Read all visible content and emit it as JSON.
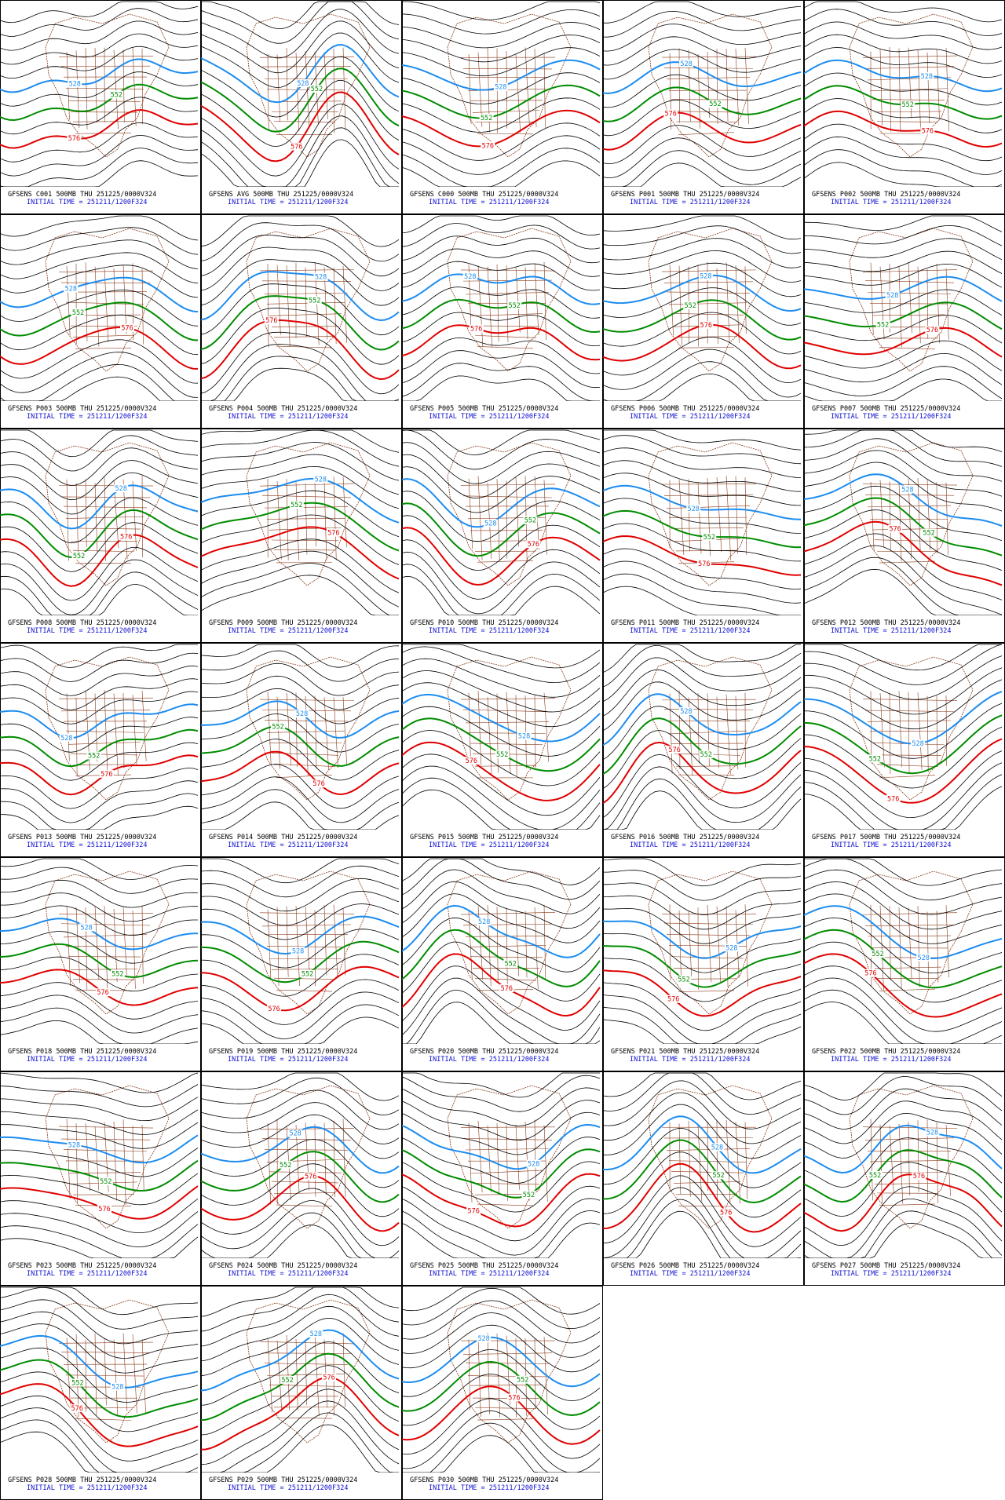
{
  "contour_colors": [
    "#1c8cf0",
    "#008c00",
    "#e00000"
  ],
  "panels": [
    {
      "title": "GFSENS C001 500MB THU 251225/0000V324",
      "init": "INITIAL TIME = 251211/1200F324",
      "contour_labels": [
        "528",
        "552",
        "576"
      ]
    },
    {
      "title": "GFSENS AVG 500MB THU 251225/0000V324",
      "init": "INITIAL TIME = 251211/1200F324",
      "contour_labels": [
        "528",
        "552",
        "576"
      ]
    },
    {
      "title": "GFSENS C000 500MB THU 251225/0000V324",
      "init": "INITIAL TIME = 251211/1200F324",
      "contour_labels": [
        "528",
        "552",
        "576"
      ]
    },
    {
      "title": "GFSENS P001 500MB THU 251225/0000V324",
      "init": "INITIAL TIME = 251211/1200F324",
      "contour_labels": [
        "528",
        "552",
        "576"
      ]
    },
    {
      "title": "GFSENS P002 500MB THU 251225/0000V324",
      "init": "INITIAL TIME = 251211/1200F324",
      "contour_labels": [
        "528",
        "552",
        "576"
      ]
    },
    {
      "title": "GFSENS P003 500MB THU 251225/0000V324",
      "init": "INITIAL TIME = 251211/1200F324",
      "contour_labels": [
        "528",
        "552",
        "576"
      ]
    },
    {
      "title": "GFSENS P004 500MB THU 251225/0000V324",
      "init": "INITIAL TIME = 251211/1200F324",
      "contour_labels": [
        "528",
        "552",
        "576"
      ]
    },
    {
      "title": "GFSENS P005 500MB THU 251225/0000V324",
      "init": "INITIAL TIME = 251211/1200F324",
      "contour_labels": [
        "528",
        "552",
        "576"
      ]
    },
    {
      "title": "GFSENS P006 500MB THU 251225/0000V324",
      "init": "INITIAL TIME = 251211/1200F324",
      "contour_labels": [
        "528",
        "552",
        "576"
      ]
    },
    {
      "title": "GFSENS P007 500MB THU 251225/0000V324",
      "init": "INITIAL TIME = 251211/1200F324",
      "contour_labels": [
        "528",
        "552",
        "576"
      ]
    },
    {
      "title": "GFSENS P008 500MB THU 251225/0000V324",
      "init": "INITIAL TIME = 251211/1200F324",
      "contour_labels": [
        "528",
        "552",
        "576"
      ]
    },
    {
      "title": "GFSENS P009 500MB THU 251225/0000V324",
      "init": "INITIAL TIME = 251211/1200F324",
      "contour_labels": [
        "528",
        "552",
        "576"
      ]
    },
    {
      "title": "GFSENS P010 500MB THU 251225/0000V324",
      "init": "INITIAL TIME = 251211/1200F324",
      "contour_labels": [
        "528",
        "552",
        "576"
      ]
    },
    {
      "title": "GFSENS P011 500MB THU 251225/0000V324",
      "init": "INITIAL TIME = 251211/1200F324",
      "contour_labels": [
        "528",
        "552",
        "576"
      ]
    },
    {
      "title": "GFSENS P012 500MB THU 251225/0000V324",
      "init": "INITIAL TIME = 251211/1200F324",
      "contour_labels": [
        "528",
        "552",
        "576"
      ]
    },
    {
      "title": "GFSENS P013 500MB THU 251225/0000V324",
      "init": "INITIAL TIME = 251211/1200F324",
      "contour_labels": [
        "528",
        "552",
        "576"
      ]
    },
    {
      "title": "GFSENS P014 500MB THU 251225/0000V324",
      "init": "INITIAL TIME = 251211/1200F324",
      "contour_labels": [
        "528",
        "552",
        "576"
      ]
    },
    {
      "title": "GFSENS P015 500MB THU 251225/0000V324",
      "init": "INITIAL TIME = 251211/1200F324",
      "contour_labels": [
        "528",
        "552",
        "576"
      ]
    },
    {
      "title": "GFSENS P016 500MB THU 251225/0000V324",
      "init": "INITIAL TIME = 251211/1200F324",
      "contour_labels": [
        "528",
        "552",
        "576"
      ]
    },
    {
      "title": "GFSENS P017 500MB THU 251225/0000V324",
      "init": "INITIAL TIME = 251211/1200F324",
      "contour_labels": [
        "528",
        "552",
        "576"
      ]
    },
    {
      "title": "GFSENS P018 500MB THU 251225/0000V324",
      "init": "INITIAL TIME = 251211/1200F324",
      "contour_labels": [
        "528",
        "552",
        "576"
      ]
    },
    {
      "title": "GFSENS P019 500MB THU 251225/0000V324",
      "init": "INITIAL TIME = 251211/1200F324",
      "contour_labels": [
        "528",
        "552",
        "576"
      ]
    },
    {
      "title": "GFSENS P020 500MB THU 251225/0000V324",
      "init": "INITIAL TIME = 251211/1200F324",
      "contour_labels": [
        "528",
        "552",
        "576"
      ]
    },
    {
      "title": "GFSENS P021 500MB THU 251225/0000V324",
      "init": "INITIAL TIME = 251211/1200F324",
      "contour_labels": [
        "528",
        "552",
        "576"
      ]
    },
    {
      "title": "GFSENS P022 500MB THU 251225/0000V324",
      "init": "INITIAL TIME = 251211/1200F324",
      "contour_labels": [
        "528",
        "552",
        "576"
      ]
    },
    {
      "title": "GFSENS P023 500MB THU 251225/0000V324",
      "init": "INITIAL TIME = 251211/1200F324",
      "contour_labels": [
        "528",
        "552",
        "576"
      ]
    },
    {
      "title": "GFSENS P024 500MB THU 251225/0000V324",
      "init": "INITIAL TIME = 251211/1200F324",
      "contour_labels": [
        "528",
        "552",
        "576"
      ]
    },
    {
      "title": "GFSENS P025 500MB THU 251225/0000V324",
      "init": "INITIAL TIME = 251211/1200F324",
      "contour_labels": [
        "528",
        "552",
        "576"
      ]
    },
    {
      "title": "GFSENS P026 500MB THU 251225/0000V324",
      "init": "INITIAL TIME = 251211/1200F324",
      "contour_labels": [
        "528",
        "552",
        "576"
      ]
    },
    {
      "title": "GFSENS P027 500MB THU 251225/0000V324",
      "init": "INITIAL TIME = 251211/1200F324",
      "contour_labels": [
        "528",
        "552",
        "576"
      ]
    },
    {
      "title": "GFSENS P028 500MB THU 251225/0000V324",
      "init": "INITIAL TIME = 251211/1200F324",
      "contour_labels": [
        "528",
        "552",
        "576"
      ]
    },
    {
      "title": "GFSENS P029 500MB THU 251225/0000V324",
      "init": "INITIAL TIME = 251211/1200F324",
      "contour_labels": [
        "528",
        "552",
        "576"
      ]
    },
    {
      "title": "GFSENS P030 500MB THU 251225/0000V324",
      "init": "INITIAL TIME = 251211/1200F324",
      "contour_labels": [
        "528",
        "552",
        "576"
      ]
    }
  ]
}
